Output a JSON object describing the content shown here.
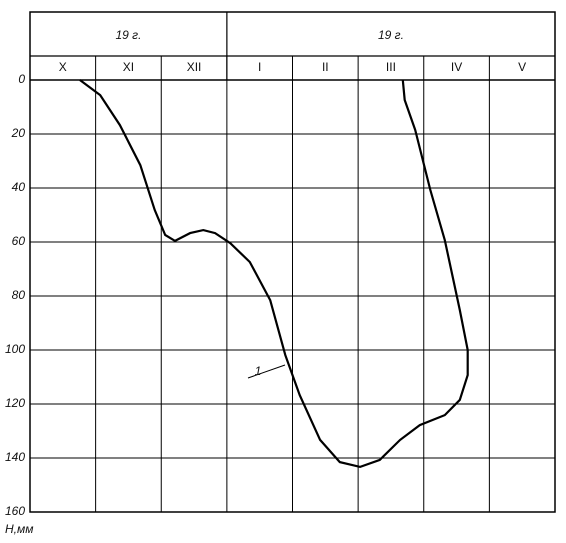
{
  "chart_data": {
    "type": "line",
    "period_labels": [
      "19   г.",
      "19   г."
    ],
    "categories": [
      "X",
      "XI",
      "XII",
      "I",
      "II",
      "III",
      "IV",
      "V"
    ],
    "y_label": "H,мм",
    "ylim": [
      0,
      160
    ],
    "yticks": [
      0,
      20,
      40,
      60,
      80,
      100,
      120,
      140,
      160
    ],
    "y_inverted": true,
    "grid": true,
    "series": [
      {
        "name": "1",
        "color": "#000000",
        "x": [
          0.76,
          1.07,
          1.37,
          1.68,
          1.9,
          2.06,
          2.21,
          2.44,
          2.64,
          2.82,
          3.05,
          3.35,
          3.66,
          3.89,
          4.11,
          4.42,
          4.72,
          5.03,
          5.33,
          5.64,
          5.94,
          6.32,
          6.55,
          6.67,
          6.67,
          6.55,
          6.32,
          6.1,
          5.87,
          5.71,
          5.68
        ],
        "values": [
          0,
          5.6,
          16.7,
          31.5,
          48.1,
          57.4,
          59.6,
          56.7,
          55.6,
          56.7,
          60.4,
          67.4,
          81.5,
          101.9,
          116.7,
          133.3,
          141.5,
          143.3,
          140.7,
          133.3,
          127.8,
          124.1,
          118.5,
          109.3,
          100,
          85.2,
          59.3,
          40.7,
          18.5,
          7.4,
          0
        ]
      }
    ]
  }
}
